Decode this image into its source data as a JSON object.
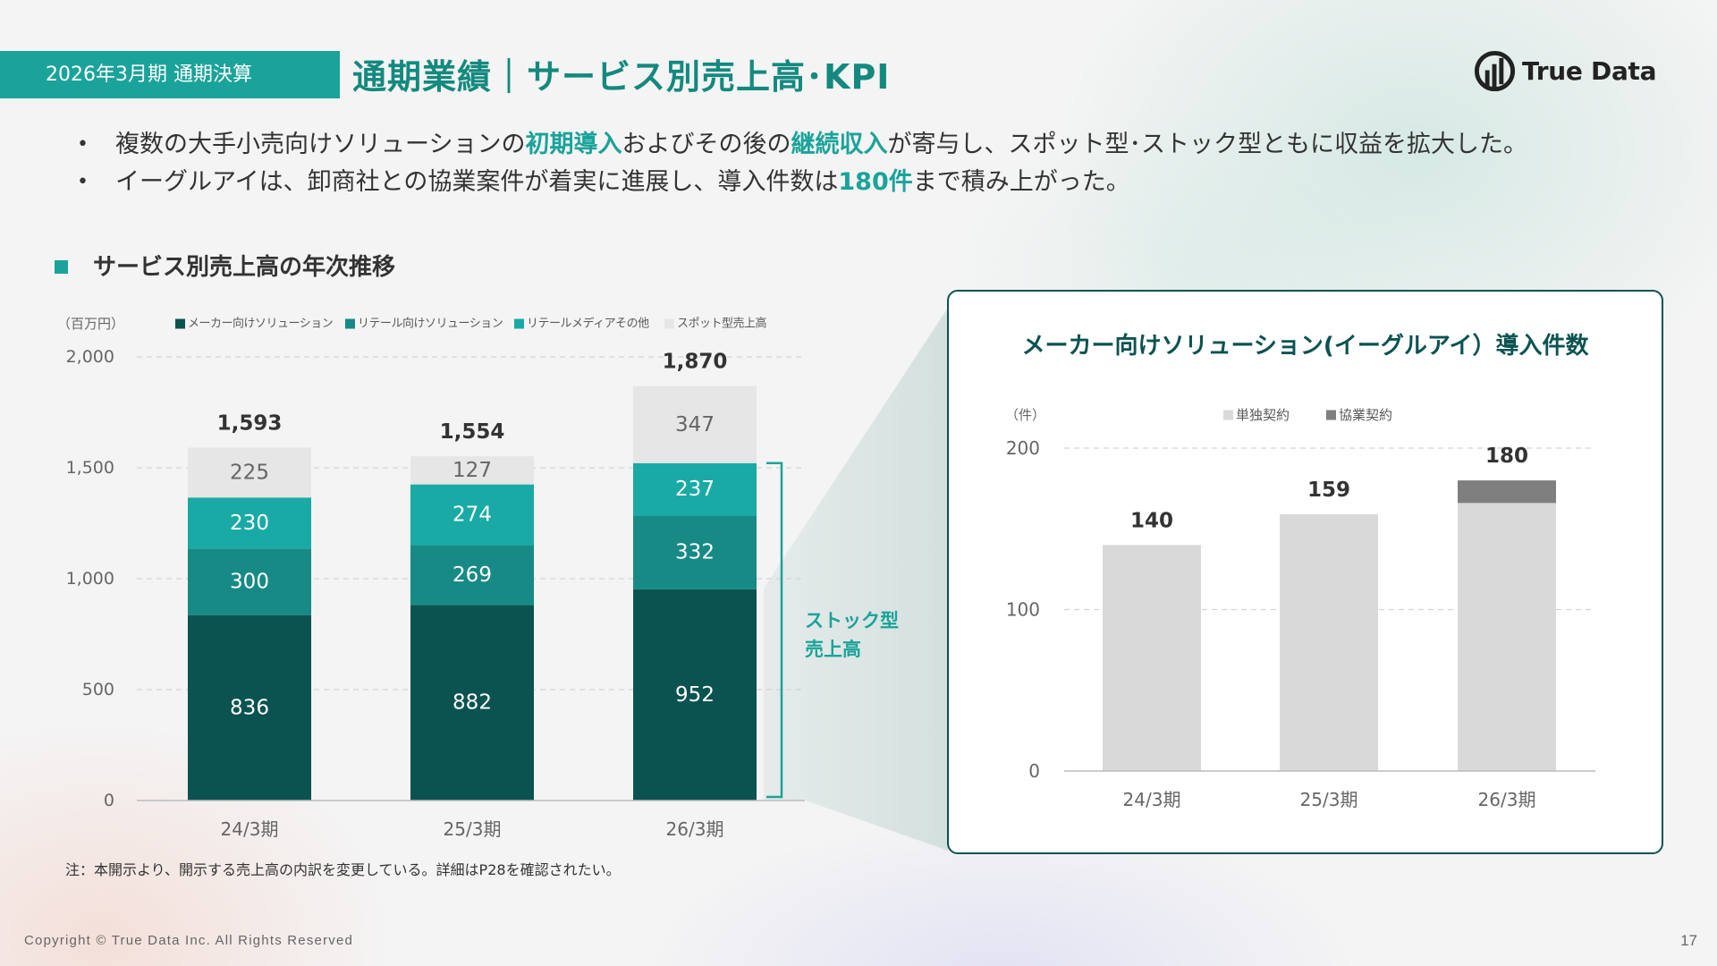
{
  "header": {
    "period_tag": "2026年3月期 通期決算",
    "title": "通期業績｜サービス別売上高･KPI"
  },
  "logo": {
    "text": "True Data",
    "icon": "true-data-logo-icon"
  },
  "bullets": [
    [
      "複数の大手小売向けソリューションの",
      "初期導入",
      "およびその後の",
      "継続収入",
      "が寄与し、スポット型･ストック型ともに収益を拡大した。"
    ],
    [
      "イーグルアイは、卸商社との協業案件が着実に進展し、導入件数は",
      "180件",
      "まで積み上がった。"
    ]
  ],
  "colors": {
    "accent": "#1aa39a",
    "title": "#13897f",
    "dark_teal": "#0b5351",
    "text": "#333333",
    "muted": "#666666",
    "page_background": "#f4f4f4"
  },
  "chart_data": [
    {
      "type": "bar",
      "stacked": true,
      "title": "サービス別売上高の年次推移",
      "unit_label": "（百万円）",
      "categories": [
        "24/3期",
        "25/3期",
        "26/3期"
      ],
      "series": [
        {
          "name": "メーカー向けソリューション",
          "values": [
            836,
            882,
            952
          ],
          "color": "#0b5351",
          "label_color": "#ffffff"
        },
        {
          "name": "リテール向けソリューション",
          "values": [
            300,
            269,
            332
          ],
          "color": "#178a86",
          "label_color": "#ffffff"
        },
        {
          "name": "リテールメディアその他",
          "values": [
            230,
            274,
            237
          ],
          "color": "#1aaaa5",
          "label_color": "#ffffff"
        },
        {
          "name": "スポット型売上高",
          "values": [
            225,
            127,
            347
          ],
          "color": "#e6e6e6",
          "label_color": "#666666"
        }
      ],
      "totals": [
        1593,
        1554,
        1870
      ],
      "yticks": [
        0,
        500,
        1000,
        1500,
        2000
      ],
      "ylim": [
        0,
        2000
      ],
      "grid": true,
      "legend": "top",
      "show_segment_labels": true,
      "bracket": {
        "label": [
          "ストック型",
          "売上高"
        ],
        "category_index": 2,
        "series_indices": [
          0,
          1,
          2
        ]
      }
    },
    {
      "type": "bar",
      "stacked": true,
      "title": "メーカー向けソリューション(イーグルアイ）導入件数",
      "unit_label": "（件）",
      "categories": [
        "24/3期",
        "25/3期",
        "26/3期"
      ],
      "series": [
        {
          "name": "単独契約",
          "values": [
            140,
            159,
            166
          ],
          "color": "#d9d9d9"
        },
        {
          "name": "協業契約",
          "values": [
            0,
            0,
            14
          ],
          "color": "#7f7f7f"
        }
      ],
      "totals": [
        140,
        159,
        180
      ],
      "yticks": [
        0,
        100,
        200
      ],
      "ylim": [
        0,
        200
      ],
      "grid": true,
      "legend": "top",
      "show_segment_labels": false
    }
  ],
  "note": "注：本開示より、開示する売上高の内訳を変更している。詳細はP28を確認されたい。",
  "footer": {
    "copyright": "Copyright © True Data Inc. All Rights Reserved",
    "page": "17"
  }
}
